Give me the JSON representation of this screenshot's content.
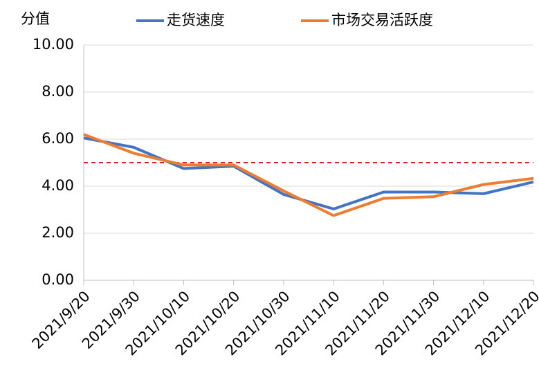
{
  "chart_data": {
    "type": "line",
    "y_label": "分值",
    "categories": [
      "2021/9/20",
      "2021/9/30",
      "2021/10/10",
      "2021/10/20",
      "2021/10/30",
      "2021/11/10",
      "2021/11/20",
      "2021/11/30",
      "2021/12/10",
      "2021/12/20"
    ],
    "series": [
      {
        "name": "走货速度",
        "color": "#4472c4",
        "values": [
          6.05,
          5.65,
          4.75,
          4.85,
          3.65,
          3.03,
          3.75,
          3.75,
          3.68,
          4.18
        ]
      },
      {
        "name": "市场交易活跃度",
        "color": "#ed7d31",
        "values": [
          6.2,
          5.4,
          4.9,
          4.9,
          3.8,
          2.75,
          3.48,
          3.55,
          4.07,
          4.33
        ]
      }
    ],
    "ylim": [
      0,
      10
    ],
    "yticks": [
      {
        "value": 0,
        "label": "0.00"
      },
      {
        "value": 2,
        "label": "2.00"
      },
      {
        "value": 4,
        "label": "4.00"
      },
      {
        "value": 6,
        "label": "6.00"
      },
      {
        "value": 8,
        "label": "8.00"
      },
      {
        "value": 10,
        "label": "10.00"
      }
    ],
    "grid": true,
    "reference_line": {
      "value": 5,
      "color": "#e02020"
    }
  }
}
